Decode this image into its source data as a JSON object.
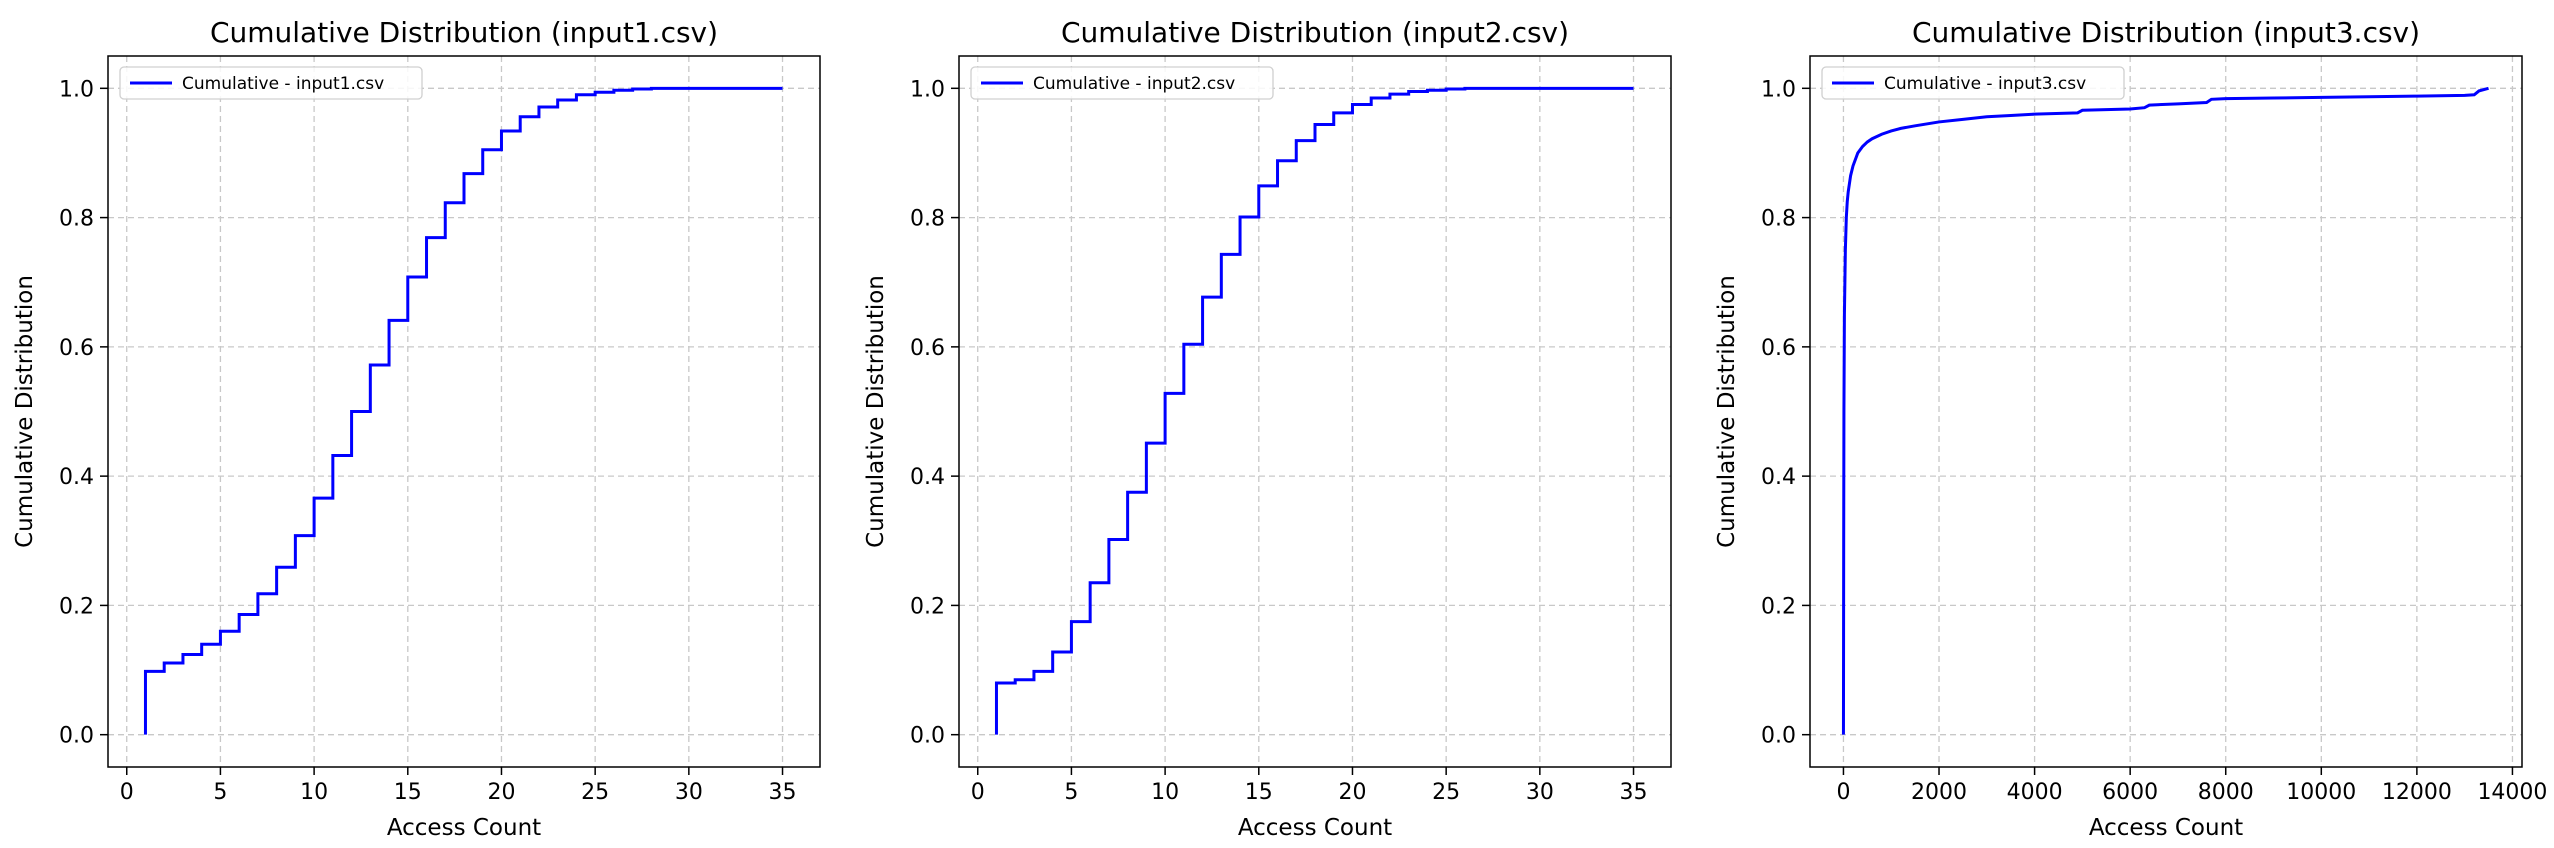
{
  "figure": {
    "line_color": "#0000ff",
    "grid_color": "#c8c8c8"
  },
  "chart_data": [
    {
      "type": "line",
      "step": true,
      "title": "Cumulative Distribution (input1.csv)",
      "xlabel": "Access Count",
      "ylabel": "Cumulative Distribution",
      "xlim": [
        -1,
        37
      ],
      "ylim": [
        -0.05,
        1.05
      ],
      "x_ticks": [
        0,
        5,
        10,
        15,
        20,
        25,
        30,
        35
      ],
      "x_tick_labels": [
        "0",
        "5",
        "10",
        "15",
        "20",
        "25",
        "30",
        "35"
      ],
      "y_ticks": [
        0,
        0.2,
        0.4,
        0.6,
        0.8,
        1.0
      ],
      "y_tick_labels": [
        "0.0",
        "0.2",
        "0.4",
        "0.6",
        "0.8",
        "1.0"
      ],
      "grid": true,
      "legend_position": "top-left",
      "series": [
        {
          "name": "Cumulative - input1.csv",
          "color": "#0000ff",
          "x": [
            1,
            1,
            2,
            3,
            4,
            5,
            6,
            7,
            8,
            9,
            10,
            11,
            12,
            13,
            14,
            15,
            16,
            17,
            18,
            19,
            20,
            21,
            22,
            23,
            24,
            25,
            26,
            27,
            28,
            29,
            30,
            31,
            32,
            33,
            34,
            35
          ],
          "y": [
            0,
            0.098,
            0.111,
            0.124,
            0.14,
            0.16,
            0.186,
            0.218,
            0.259,
            0.308,
            0.366,
            0.432,
            0.5,
            0.572,
            0.641,
            0.708,
            0.769,
            0.823,
            0.868,
            0.905,
            0.934,
            0.956,
            0.971,
            0.982,
            0.99,
            0.994,
            0.997,
            0.999,
            1.0,
            1.0,
            1.0,
            1.0,
            1.0,
            1.0,
            1.0,
            1.0
          ]
        }
      ]
    },
    {
      "type": "line",
      "step": true,
      "title": "Cumulative Distribution (input2.csv)",
      "xlabel": "Access Count",
      "ylabel": "Cumulative Distribution",
      "xlim": [
        -1,
        37
      ],
      "ylim": [
        -0.05,
        1.05
      ],
      "x_ticks": [
        0,
        5,
        10,
        15,
        20,
        25,
        30,
        35
      ],
      "x_tick_labels": [
        "0",
        "5",
        "10",
        "15",
        "20",
        "25",
        "30",
        "35"
      ],
      "y_ticks": [
        0,
        0.2,
        0.4,
        0.6,
        0.8,
        1.0
      ],
      "y_tick_labels": [
        "0.0",
        "0.2",
        "0.4",
        "0.6",
        "0.8",
        "1.0"
      ],
      "grid": true,
      "legend_position": "top-left",
      "series": [
        {
          "name": "Cumulative - input2.csv",
          "color": "#0000ff",
          "x": [
            1,
            1,
            2,
            3,
            4,
            5,
            6,
            7,
            8,
            9,
            10,
            11,
            12,
            13,
            14,
            15,
            16,
            17,
            18,
            19,
            20,
            21,
            22,
            23,
            24,
            25,
            26,
            27,
            28,
            29,
            30,
            31,
            32,
            33,
            34,
            35
          ],
          "y": [
            0,
            0.08,
            0.085,
            0.098,
            0.128,
            0.175,
            0.235,
            0.302,
            0.375,
            0.451,
            0.528,
            0.604,
            0.677,
            0.743,
            0.801,
            0.849,
            0.888,
            0.919,
            0.944,
            0.962,
            0.975,
            0.985,
            0.991,
            0.995,
            0.997,
            0.999,
            1.0,
            1.0,
            1.0,
            1.0,
            1.0,
            1.0,
            1.0,
            1.0,
            1.0,
            1.0
          ]
        }
      ]
    },
    {
      "type": "line",
      "step": false,
      "title": "Cumulative Distribution (input3.csv)",
      "xlabel": "Access Count",
      "ylabel": "Cumulative Distribution",
      "xlim": [
        -700,
        14200
      ],
      "ylim": [
        -0.05,
        1.05
      ],
      "x_ticks": [
        0,
        2000,
        4000,
        6000,
        8000,
        10000,
        12000,
        14000
      ],
      "x_tick_labels": [
        "0",
        "2000",
        "4000",
        "6000",
        "8000",
        "10000",
        "12000",
        "14000"
      ],
      "y_ticks": [
        0,
        0.2,
        0.4,
        0.6,
        0.8,
        1.0
      ],
      "y_tick_labels": [
        "0.0",
        "0.2",
        "0.4",
        "0.6",
        "0.8",
        "1.0"
      ],
      "grid": true,
      "legend_position": "top-left",
      "series": [
        {
          "name": "Cumulative - input3.csv",
          "color": "#0000ff",
          "x": [
            0,
            5,
            10,
            20,
            40,
            60,
            80,
            100,
            150,
            200,
            300,
            400,
            500,
            600,
            800,
            1000,
            1200,
            1500,
            2000,
            2500,
            3000,
            3500,
            4000,
            4900,
            5000,
            6000,
            6300,
            6400,
            7000,
            7600,
            7700,
            8000,
            9000,
            10000,
            11000,
            12000,
            13000,
            13200,
            13300,
            13500
          ],
          "y": [
            0,
            0.3,
            0.5,
            0.65,
            0.75,
            0.8,
            0.825,
            0.84,
            0.865,
            0.88,
            0.9,
            0.91,
            0.917,
            0.922,
            0.929,
            0.934,
            0.938,
            0.942,
            0.948,
            0.952,
            0.956,
            0.958,
            0.96,
            0.962,
            0.966,
            0.968,
            0.97,
            0.974,
            0.976,
            0.978,
            0.983,
            0.984,
            0.985,
            0.986,
            0.987,
            0.988,
            0.989,
            0.99,
            0.996,
            1.0
          ]
        }
      ]
    }
  ]
}
